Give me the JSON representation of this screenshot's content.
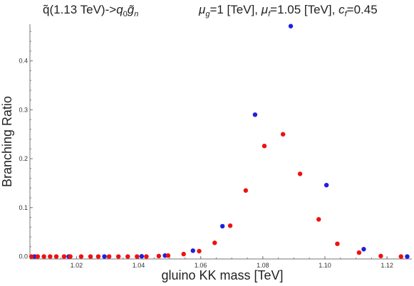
{
  "chart_data": {
    "type": "scatter",
    "title_left": {
      "particle": "q̃",
      "energy": "(1.13 TeV)",
      "arrow": "->",
      "product1": "q",
      "product1_sub": "0",
      "product2": "g̃",
      "product2_sub": "n"
    },
    "title_right": {
      "mu_g_symbol": "μ",
      "mu_g_sub": "g",
      "mu_g_value": "=1 [TeV], ",
      "mu_f_symbol": "μ",
      "mu_f_sub": "f",
      "mu_f_value": "=1.05 [TeV], ",
      "c_f_symbol": "c",
      "c_f_sub": "f",
      "c_f_value": "=0.45"
    },
    "xlabel": "gluino KK mass [TeV]",
    "ylabel": "Branching Ratio",
    "xlim": [
      1.005,
      1.128
    ],
    "ylim": [
      -0.005,
      0.475
    ],
    "xticks": [
      "1.02",
      "1.04",
      "1.06",
      "1.08",
      "1.10",
      "1.12"
    ],
    "yticks": [
      "0.0",
      "0.1",
      "0.2",
      "0.3",
      "0.4"
    ],
    "series": [
      {
        "color": "#1f1fe0",
        "points": [
          [
            1.0065,
            0.0
          ],
          [
            1.0175,
            0.0
          ],
          [
            1.029,
            0.0
          ],
          [
            1.041,
            0.0005
          ],
          [
            1.0485,
            0.002
          ],
          [
            1.0575,
            0.012
          ],
          [
            1.067,
            0.062
          ],
          [
            1.0775,
            0.29
          ],
          [
            1.089,
            0.471
          ],
          [
            1.1005,
            0.146
          ],
          [
            1.1125,
            0.015
          ],
          [
            1.1265,
            0.0
          ]
        ]
      },
      {
        "color": "#ee1111",
        "points": [
          [
            1.0055,
            0.0
          ],
          [
            1.0075,
            0.0
          ],
          [
            1.0095,
            0.0
          ],
          [
            1.0115,
            0.0
          ],
          [
            1.0135,
            0.0
          ],
          [
            1.016,
            0.0
          ],
          [
            1.018,
            0.0
          ],
          [
            1.0215,
            0.0
          ],
          [
            1.0245,
            0.0
          ],
          [
            1.027,
            0.0
          ],
          [
            1.0305,
            0.0
          ],
          [
            1.0335,
            0.0
          ],
          [
            1.0365,
            0.0
          ],
          [
            1.0395,
            0.0
          ],
          [
            1.0425,
            0.0
          ],
          [
            1.0465,
            0.001
          ],
          [
            1.0495,
            0.002
          ],
          [
            1.0545,
            0.005
          ],
          [
            1.0595,
            0.011
          ],
          [
            1.0645,
            0.028
          ],
          [
            1.0695,
            0.063
          ],
          [
            1.0745,
            0.135
          ],
          [
            1.0805,
            0.226
          ],
          [
            1.0865,
            0.25
          ],
          [
            1.092,
            0.169
          ],
          [
            1.098,
            0.076
          ],
          [
            1.104,
            0.026
          ],
          [
            1.111,
            0.008
          ],
          [
            1.118,
            0.001
          ],
          [
            1.1245,
            0.0
          ]
        ]
      }
    ]
  }
}
